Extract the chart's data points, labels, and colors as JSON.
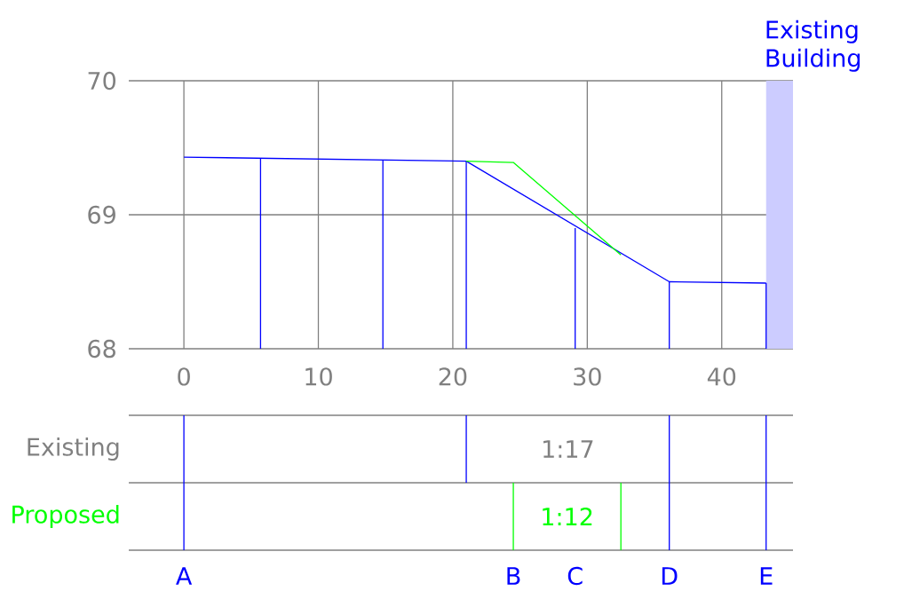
{
  "chart_data": {
    "type": "line",
    "xlim": [
      -4.1,
      45.3
    ],
    "ylim": [
      68,
      70
    ],
    "xticks": [
      0,
      10,
      20,
      30,
      40
    ],
    "yticks": [
      68,
      69,
      70
    ],
    "grid": true,
    "marker": "none",
    "line_style": "solid",
    "series": [
      {
        "color": "#0000ff",
        "x": [
          0,
          21,
          36.1,
          43.3
        ],
        "values": [
          69.43,
          69.4,
          68.5,
          68.49
        ]
      },
      {
        "color": "#00ff00",
        "x": [
          21,
          24.5,
          32.5
        ],
        "values": [
          69.4,
          69.39,
          68.7
        ]
      },
      {
        "type": "bar",
        "color": "#0000ff",
        "x": [
          5.7,
          14.8,
          21,
          29.1,
          36.1,
          43.3
        ],
        "values": [
          69.42,
          69.41,
          69.4,
          68.9,
          68.5,
          68.49
        ]
      }
    ],
    "bands": [
      {
        "axis": "x",
        "from": 43.3,
        "to": 45.3,
        "label": "Existing Building",
        "color": "#ccccff"
      }
    ],
    "annotations": [
      "Existing",
      "1:17",
      "Proposed",
      "1:12",
      "A",
      "B",
      "C",
      "D",
      "E"
    ]
  }
}
